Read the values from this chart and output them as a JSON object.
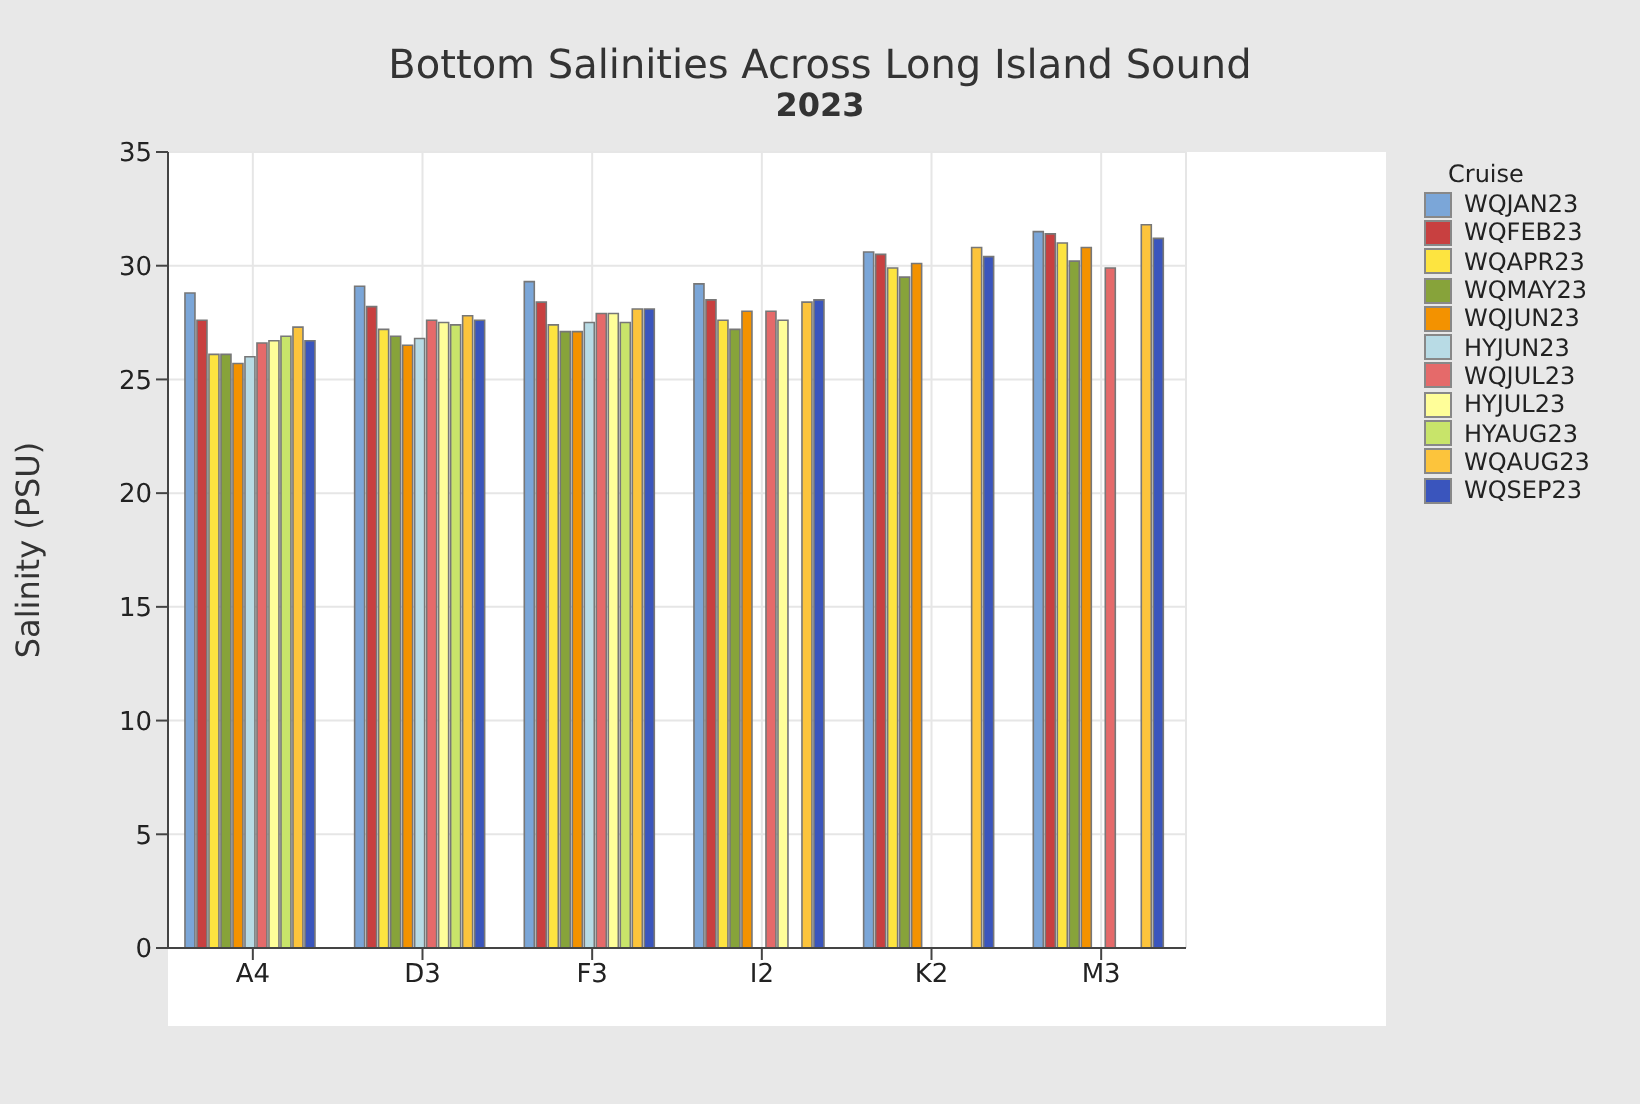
{
  "chart_data": {
    "type": "bar",
    "title": "Bottom Salinities Across Long Island Sound",
    "subtitle": "2023",
    "ylabel": "Salinity (PSU)",
    "legend_title": "Cruise",
    "legend": "right",
    "grid": true,
    "categories": [
      "A4",
      "D3",
      "F3",
      "I2",
      "K2",
      "M3"
    ],
    "ylim": [
      0,
      35
    ],
    "yticks": [
      0,
      5,
      10,
      15,
      20,
      25,
      30,
      35
    ],
    "series": [
      {
        "name": "WQJAN23",
        "color": "#7ba6d8",
        "values": [
          28.8,
          29.1,
          29.3,
          29.2,
          30.6,
          31.5
        ]
      },
      {
        "name": "WQFEB23",
        "color": "#c84040",
        "values": [
          27.6,
          28.2,
          28.4,
          28.5,
          30.5,
          31.4
        ]
      },
      {
        "name": "WQAPR23",
        "color": "#fde440",
        "values": [
          26.1,
          27.2,
          27.4,
          27.6,
          29.9,
          31.0
        ]
      },
      {
        "name": "WQMAY23",
        "color": "#87a33a",
        "values": [
          26.1,
          26.9,
          27.1,
          27.2,
          29.5,
          30.2
        ]
      },
      {
        "name": "WQJUN23",
        "color": "#f39200",
        "values": [
          25.7,
          26.5,
          27.1,
          28.0,
          30.1,
          30.8
        ]
      },
      {
        "name": "HYJUN23",
        "color": "#b8dbe5",
        "values": [
          26.0,
          26.8,
          27.5,
          null,
          null,
          null
        ]
      },
      {
        "name": "WQJUL23",
        "color": "#e56a6a",
        "values": [
          26.6,
          27.6,
          27.9,
          28.0,
          null,
          29.9
        ]
      },
      {
        "name": "HYJUL23",
        "color": "#fffe99",
        "values": [
          26.7,
          27.5,
          27.9,
          27.6,
          null,
          null
        ]
      },
      {
        "name": "HYAUG23",
        "color": "#c8e46a",
        "values": [
          26.9,
          27.4,
          27.5,
          null,
          null,
          null
        ]
      },
      {
        "name": "WQAUG23",
        "color": "#fcc43c",
        "values": [
          27.3,
          27.8,
          28.1,
          28.4,
          30.8,
          31.8
        ]
      },
      {
        "name": "WQSEP23",
        "color": "#3a55bd",
        "values": [
          26.7,
          27.6,
          28.1,
          28.5,
          30.4,
          31.2
        ]
      }
    ]
  }
}
